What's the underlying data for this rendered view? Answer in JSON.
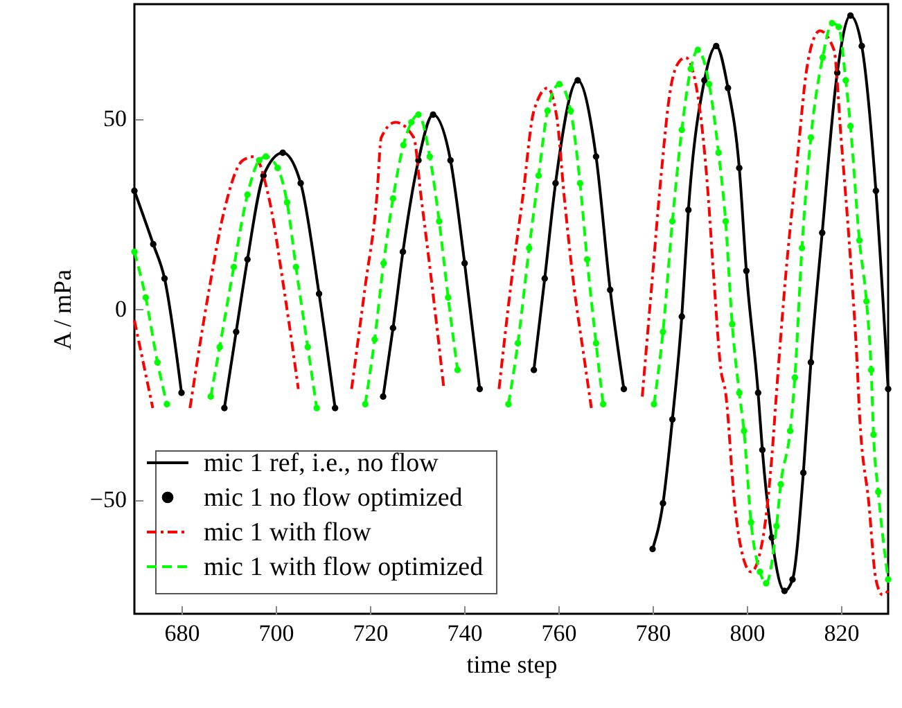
{
  "chart_data": {
    "type": "line",
    "xlabel": "time step",
    "ylabel": "A / mPa",
    "xlim": [
      670,
      830
    ],
    "ylim": [
      -80,
      80
    ],
    "xticks": [
      680,
      700,
      720,
      740,
      760,
      780,
      800,
      820
    ],
    "yticks": [
      -50,
      0,
      50
    ],
    "legend": "bottom left",
    "series": [
      {
        "name": "mic 1 ref, i.e., no flow",
        "color": "#000000",
        "line_style": "solid",
        "marker": "none",
        "x": [
          670,
          674,
          676.4,
          680,
          686,
          689.1,
          691.6,
          694,
          697.4,
          701.5,
          705.3,
          709.2,
          712.6,
          718,
          722.8,
          724.9,
          727,
          730.3,
          733.4,
          737.1,
          740.1,
          743.3,
          749,
          754.8,
          757.1,
          759.4,
          764.1,
          768,
          771,
          773.9,
          777.5,
          780,
          782.2,
          784.2,
          786.2,
          787.6,
          791,
          793.5,
          796,
          798.4,
          799.9,
          802.4,
          803.3,
          805.3,
          808,
          809.7,
          812,
          813.6,
          816,
          819.2,
          822,
          824.4,
          827.4,
          830
        ],
        "values": [
          31,
          17,
          8,
          -22,
          null,
          -26,
          -6,
          13,
          35,
          41,
          33,
          4,
          -26,
          null,
          -23,
          -5,
          15,
          39,
          51,
          39,
          12,
          -21,
          null,
          -16,
          8,
          33,
          60,
          40,
          5,
          -21,
          null,
          -63,
          -51,
          -29,
          -2,
          26,
          60,
          69,
          58,
          37,
          10,
          -22,
          -37,
          -60,
          -74,
          -71,
          -43,
          -14,
          20,
          62,
          77,
          69,
          31,
          -21
        ]
      },
      {
        "name": "mic 1 no flow optimized",
        "type": "scatter",
        "color": "#000000",
        "marker": "circle",
        "x": [
          670,
          674,
          676.4,
          680,
          689.1,
          691.6,
          694,
          697.4,
          701.5,
          705.3,
          709.2,
          712.6,
          722.8,
          724.9,
          727,
          730.3,
          733.4,
          737.1,
          740.1,
          743.3,
          754.8,
          757.1,
          759.4,
          764.1,
          768,
          771,
          773.9,
          780,
          782.2,
          784.2,
          786.2,
          787.6,
          791,
          793.5,
          796,
          798.4,
          799.9,
          802.4,
          803.3,
          805.3,
          808,
          809.7,
          812,
          813.6,
          816,
          819.2,
          822,
          824.4,
          827.4,
          830
        ],
        "values": [
          31,
          17,
          8,
          -22,
          -26,
          -6,
          13,
          35,
          41,
          33,
          4,
          -26,
          -23,
          -5,
          15,
          39,
          51,
          39,
          12,
          -21,
          -16,
          8,
          33,
          60,
          40,
          5,
          -21,
          -63,
          -51,
          -29,
          -2,
          26,
          60,
          69,
          58,
          37,
          10,
          -22,
          -37,
          -60,
          -74,
          -71,
          -43,
          -14,
          20,
          62,
          77,
          69,
          31,
          -21
        ]
      },
      {
        "name": "mic 1 with flow",
        "color": "#ff0000",
        "line_style": "dashdot",
        "marker": "none",
        "x": [
          670,
          673.9,
          678,
          681.8,
          685.7,
          689.1,
          693,
          695.5,
          698.4,
          701.9,
          704.8,
          710,
          716.1,
          719,
          721.5,
          722.4,
          725.4,
          729.3,
          730.8,
          733.2,
          735.7,
          741.5,
          747.4,
          749.9,
          752.4,
          754.8,
          757.7,
          759.7,
          761.2,
          763.1,
          765.6,
          767,
          771.5,
          777.8,
          779.8,
          781.8,
          783.7,
          785.7,
          787,
          789.6,
          791.6,
          793,
          794.5,
          795.5,
          797.4,
          799.4,
          800.9,
          803.3,
          805.3,
          806.3,
          808.2,
          810.7,
          812.6,
          814.6,
          815.5,
          818.5,
          820,
          822,
          823.4,
          823.9,
          825.9,
          827.4,
          828.8,
          830
        ],
        "values": [
          -3,
          -26,
          null,
          -26,
          4,
          26,
          39,
          40,
          30,
          4,
          -21,
          null,
          -21,
          6,
          30,
          45,
          49,
          45,
          30,
          6,
          -21,
          null,
          -21,
          6,
          29,
          52,
          58,
          50,
          30,
          8,
          -14,
          -26,
          null,
          -23,
          6,
          35,
          57,
          65,
          66,
          56,
          33,
          8,
          -16,
          -22,
          -51,
          -66,
          -69,
          -61,
          -39,
          -22,
          8,
          39,
          62,
          72,
          73,
          68,
          45,
          13,
          -14,
          -27,
          -51,
          -71,
          -75,
          -74
        ]
      },
      {
        "name": "mic 1 with flow optimized",
        "color": "#00ff00",
        "line_style": "dashed",
        "marker": "circle",
        "x": [
          670,
          672.4,
          674.9,
          676.9,
          681,
          686.2,
          688.1,
          691.1,
          694,
          696.5,
          697.9,
          700.4,
          702.4,
          704.3,
          706.8,
          708.7,
          714,
          719,
          721,
          722.9,
          724.9,
          727.1,
          728.8,
          730.3,
          732.7,
          734.7,
          736.6,
          738.6,
          744.5,
          749.4,
          751.4,
          753.8,
          755.8,
          757.7,
          760.2,
          762.6,
          764.6,
          766.1,
          768,
          769.5,
          775,
          780.3,
          782.2,
          784.2,
          786.2,
          788.1,
          789.6,
          792,
          794,
          795.5,
          796.9,
          798.4,
          799.4,
          800.9,
          802.8,
          804.1,
          806.3,
          807.2,
          809.2,
          810.2,
          811.7,
          813.6,
          816.1,
          818.1,
          819.5,
          821,
          822,
          823.9,
          825.4,
          826.4,
          826.9,
          827.9,
          830
        ],
        "values": [
          15,
          3,
          -14,
          -25,
          null,
          -23,
          -10,
          11,
          30,
          39,
          40,
          37,
          28,
          11,
          -10,
          -26,
          null,
          -25,
          -8,
          12,
          29,
          43,
          49,
          51,
          40,
          23,
          3,
          -16,
          null,
          -25,
          -9,
          16,
          35,
          52,
          59,
          52,
          33,
          13,
          -9,
          -25,
          null,
          -25,
          -6,
          23,
          47,
          63,
          68,
          59,
          41,
          23,
          -4,
          -22,
          -32,
          -56,
          -69,
          -72,
          -57,
          -46,
          -32,
          -18,
          16,
          45,
          66,
          75,
          74,
          60,
          48,
          18,
          2,
          -16,
          -33,
          -48,
          -71
        ]
      }
    ]
  }
}
